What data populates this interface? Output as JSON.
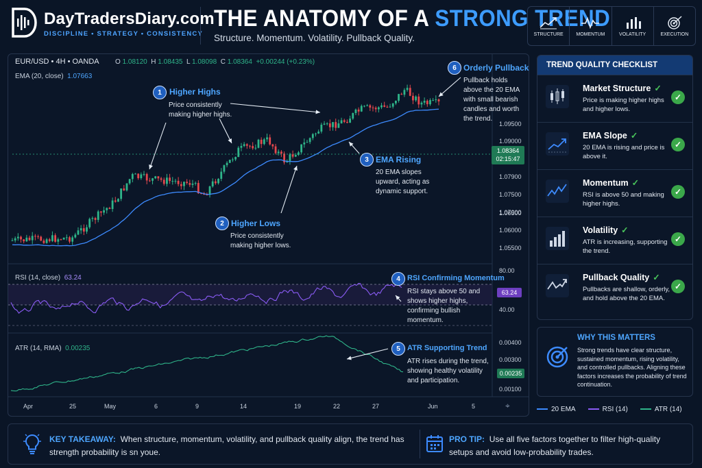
{
  "brand": {
    "name": "DayTradersDiary.com",
    "tagline": "DISCIPLINE • STRATEGY • CONSISTENCY"
  },
  "header": {
    "title_part1": "THE ANATOMY OF A ",
    "title_part2": "STRONG TREND",
    "subtitle": "Structure. Momentum. Volatility. Pullback Quality."
  },
  "icon_bar": [
    {
      "icon": "trend-line-icon",
      "label": "STRUCTURE"
    },
    {
      "icon": "pulse-icon",
      "label": "MOMENTUM"
    },
    {
      "icon": "bars-icon",
      "label": "VOLATILITY"
    },
    {
      "icon": "target-icon",
      "label": "EXECUTION"
    }
  ],
  "chart": {
    "symbol": "EUR/USD • 4H • OANDA",
    "ohlc": {
      "o_label": "O",
      "o": "1.08120",
      "h_label": "H",
      "h": "1.08435",
      "l_label": "L",
      "l": "1.08098",
      "c_label": "C",
      "c": "1.08364",
      "chg": "+0.00244 (+0.23%)"
    },
    "ema_label": "EMA (20, close)",
    "ema_value": "1.07663",
    "price_axis": [
      "1.09500",
      "1.09000",
      "1.08364",
      "1.07900",
      "1.07500",
      "1.07000",
      "1.06500",
      "1.06000",
      "1.05500"
    ],
    "price_badge": "1.08364",
    "price_timer": "02:15:47",
    "rsi_label": "RSI (14, close)",
    "rsi_value": "63.24",
    "rsi_axis": [
      "80.00",
      "60.00",
      "40.00"
    ],
    "rsi_badge": "63.24",
    "atr_label": "ATR (14, RMA)",
    "atr_value": "0.00235",
    "atr_axis": [
      "0.00400",
      "0.00300",
      "0.00235",
      "0.00100"
    ],
    "atr_badge": "0.00235",
    "x_axis": [
      "Apr",
      "25",
      "May",
      "6",
      "9",
      "14",
      "19",
      "22",
      "27",
      "Jun",
      "5"
    ]
  },
  "annotations": [
    {
      "n": "1",
      "title": "Higher Highs",
      "body": "Price consistently making higher highs."
    },
    {
      "n": "2",
      "title": "Higher Lows",
      "body": "Price consistently making higher lows."
    },
    {
      "n": "3",
      "title": "EMA Rising",
      "body": "20 EMA slopes upward, acting as dynamic support."
    },
    {
      "n": "4",
      "title": "RSI Confirming Momentum",
      "body": "RSI stays above 50 and shows higher highs, confirming bullish momentum."
    },
    {
      "n": "5",
      "title": "ATR Supporting Trend",
      "body": "ATR rises during the trend, showing healthy volatility and participation."
    },
    {
      "n": "6",
      "title": "Orderly Pullback",
      "body": "Pullback holds above the 20 EMA with small bearish candles and worth the trend."
    }
  ],
  "checklist": {
    "title": "TREND QUALITY CHECKLIST",
    "items": [
      {
        "icon": "candles-icon",
        "title": "Market Structure",
        "tick": "✓",
        "desc": "Price is making higher highs and higher lows."
      },
      {
        "icon": "rising-line-icon",
        "title": "EMA Slope",
        "tick": "✓",
        "desc": "20 EMA is rising and price is above it."
      },
      {
        "icon": "momentum-icon",
        "title": "Momentum",
        "tick": "✓",
        "desc": "RSI is above 50 and making higher highs."
      },
      {
        "icon": "volatility-bars-icon",
        "title": "Volatility",
        "tick": "✓",
        "desc": "ATR is increasing, supporting the trend."
      },
      {
        "icon": "pullback-icon",
        "title": "Pullback Quality",
        "tick": "✓",
        "desc": "Pullbacks are shallow, orderly, and hold above the 20 EMA."
      }
    ]
  },
  "why": {
    "title": "WHY THIS MATTERS",
    "body": "Strong trends have clear structure, sustained momentum, rising volatility, and controlled pullbacks. Aligning these factors increases the probability of trend continuation."
  },
  "legend": [
    {
      "label": "20 EMA",
      "color": "#3d8bff"
    },
    {
      "label": "RSI (14)",
      "color": "#8b5cf6"
    },
    {
      "label": "ATR (14)",
      "color": "#2fb58a"
    }
  ],
  "bottom": {
    "key_label": "KEY TAKEAWAY:",
    "key_text": "When structure, momentum, volatility, and pullback quality align, the trend has strength probability is sn youe.",
    "tip_label": "PRO TIP:",
    "tip_text": "Use all five factors together to filter high-quality setups and avoid low-probability trades."
  },
  "colors": {
    "accent": "#3d9cff",
    "bull": "#2fb58a",
    "bear": "#e5484d",
    "ema": "#3d8bff",
    "rsi": "#8b5cf6",
    "atr": "#2fb58a",
    "badge_green": "#1f7a55",
    "badge_purple": "#6d3fc0"
  }
}
